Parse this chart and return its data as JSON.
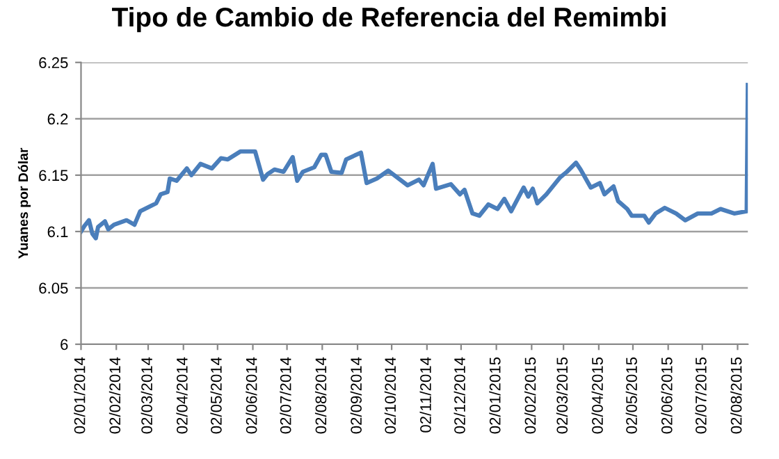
{
  "chart_data": {
    "type": "line",
    "title": "Tipo de Cambio de Referencia del Remimbi",
    "ylabel": "Yuanes por Dólar",
    "x": [
      "2014-01-02",
      "2014-01-05",
      "2014-01-09",
      "2014-01-12",
      "2014-01-15",
      "2014-01-17",
      "2014-01-23",
      "2014-01-26",
      "2014-01-31",
      "2014-02-11",
      "2014-02-18",
      "2014-02-23",
      "2014-03-03",
      "2014-03-09",
      "2014-03-13",
      "2014-03-19",
      "2014-03-21",
      "2014-03-27",
      "2014-04-05",
      "2014-04-09",
      "2014-04-17",
      "2014-04-27",
      "2014-05-05",
      "2014-05-11",
      "2014-05-22",
      "2014-06-04",
      "2014-06-11",
      "2014-06-15",
      "2014-06-21",
      "2014-06-29",
      "2014-07-07",
      "2014-07-11",
      "2014-07-16",
      "2014-07-26",
      "2014-08-01",
      "2014-08-05",
      "2014-08-10",
      "2014-08-19",
      "2014-08-23",
      "2014-09-05",
      "2014-09-10",
      "2014-09-19",
      "2014-09-29",
      "2014-10-16",
      "2014-10-26",
      "2014-10-30",
      "2014-11-07",
      "2014-11-10",
      "2014-11-23",
      "2014-12-01",
      "2014-12-05",
      "2014-12-12",
      "2014-12-18",
      "2014-12-26",
      "2015-01-03",
      "2015-01-09",
      "2015-01-15",
      "2015-01-26",
      "2015-01-30",
      "2015-02-03",
      "2015-02-07",
      "2015-02-15",
      "2015-02-27",
      "2015-03-05",
      "2015-03-13",
      "2015-03-17",
      "2015-03-26",
      "2015-04-03",
      "2015-04-07",
      "2015-04-15",
      "2015-04-19",
      "2015-04-27",
      "2015-05-01",
      "2015-05-12",
      "2015-05-16",
      "2015-05-22",
      "2015-05-30",
      "2015-06-09",
      "2015-06-17",
      "2015-06-28",
      "2015-07-10",
      "2015-07-18",
      "2015-07-30",
      "2015-08-10",
      "2015-08-11"
    ],
    "series": [
      {
        "color": "#4a7ebb",
        "values": [
          6.1,
          6.105,
          6.11,
          6.098,
          6.094,
          6.104,
          6.109,
          6.102,
          6.106,
          6.11,
          6.106,
          6.118,
          6.122,
          6.125,
          6.133,
          6.135,
          6.147,
          6.145,
          6.156,
          6.15,
          6.16,
          6.156,
          6.165,
          6.164,
          6.171,
          6.171,
          6.146,
          6.151,
          6.155,
          6.153,
          6.166,
          6.145,
          6.153,
          6.157,
          6.168,
          6.168,
          6.153,
          6.152,
          6.164,
          6.17,
          6.143,
          6.147,
          6.154,
          6.141,
          6.146,
          6.141,
          6.16,
          6.138,
          6.142,
          6.133,
          6.137,
          6.116,
          6.114,
          6.124,
          6.12,
          6.129,
          6.118,
          6.139,
          6.131,
          6.138,
          6.125,
          6.133,
          6.148,
          6.153,
          6.161,
          6.155,
          6.139,
          6.143,
          6.133,
          6.14,
          6.127,
          6.12,
          6.114,
          6.114,
          6.108,
          6.116,
          6.121,
          6.116,
          6.11,
          6.116,
          6.116,
          6.12,
          6.116,
          6.118,
          6.23
        ]
      }
    ],
    "xlim": [
      "2014-01-02",
      "2015-08-11"
    ],
    "xticks": [
      {
        "value": "2014-01-02",
        "label": "02/01/2014"
      },
      {
        "value": "2014-02-02",
        "label": "02/02/2014"
      },
      {
        "value": "2014-03-02",
        "label": "02/03/2014"
      },
      {
        "value": "2014-04-02",
        "label": "02/04/2014"
      },
      {
        "value": "2014-05-02",
        "label": "02/05/2014"
      },
      {
        "value": "2014-06-02",
        "label": "02/06/2014"
      },
      {
        "value": "2014-07-02",
        "label": "02/07/2014"
      },
      {
        "value": "2014-08-02",
        "label": "02/08/2014"
      },
      {
        "value": "2014-09-02",
        "label": "02/09/2014"
      },
      {
        "value": "2014-10-02",
        "label": "02/10/2014"
      },
      {
        "value": "2014-11-02",
        "label": "02/11/2014"
      },
      {
        "value": "2014-12-02",
        "label": "02/12/2014"
      },
      {
        "value": "2015-01-02",
        "label": "02/01/2015"
      },
      {
        "value": "2015-02-02",
        "label": "02/02/2015"
      },
      {
        "value": "2015-03-02",
        "label": "02/03/2015"
      },
      {
        "value": "2015-04-02",
        "label": "02/04/2015"
      },
      {
        "value": "2015-05-02",
        "label": "02/05/2015"
      },
      {
        "value": "2015-06-02",
        "label": "02/06/2015"
      },
      {
        "value": "2015-07-02",
        "label": "02/07/2015"
      },
      {
        "value": "2015-08-02",
        "label": "02/08/2015"
      }
    ],
    "ylim": [
      6,
      6.25
    ],
    "yticks": [
      6,
      6.05,
      6.1,
      6.15,
      6.2,
      6.25
    ],
    "grid": "y",
    "marker": "none",
    "line_style": "solid"
  }
}
